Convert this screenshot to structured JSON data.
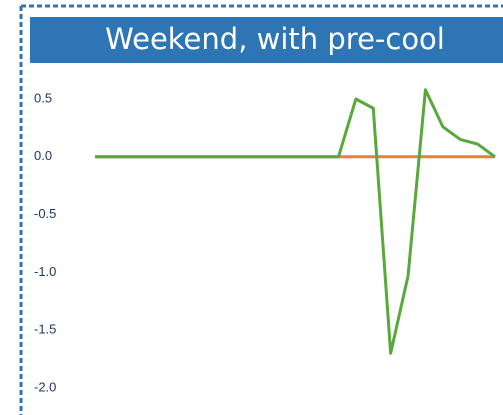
{
  "chart_data": {
    "type": "line",
    "title": "Weekend, with pre-cool",
    "categories": [
      null,
      null,
      null,
      null,
      null,
      null,
      null,
      null,
      null,
      null,
      null,
      null,
      null,
      null,
      null,
      null,
      null,
      null,
      null,
      null,
      null,
      null,
      null,
      null
    ],
    "series": [
      {
        "color": "#ed7d31",
        "values": [
          0,
          0,
          0,
          0,
          0,
          0,
          0,
          0,
          0,
          0,
          0,
          0,
          0,
          0,
          0,
          0,
          0,
          0,
          0,
          0,
          0,
          0,
          0,
          0
        ]
      },
      {
        "color": "#59a83b",
        "values": [
          0,
          0,
          0,
          0,
          0,
          0,
          0,
          0,
          0,
          0,
          0,
          0,
          0,
          0,
          0,
          0.5,
          0.42,
          -1.7,
          -1.03,
          0.58,
          0.26,
          0.15,
          0.11,
          0.0
        ]
      }
    ],
    "ylim": [
      -2.0,
      0.5
    ],
    "yticks": [
      0.5,
      {
        "value": 0,
        "label": "0.0"
      },
      -0.5,
      {
        "value": -1,
        "label": "-1.0"
      },
      -1.5,
      {
        "value": -2,
        "label": "-2.0"
      }
    ],
    "grid": false
  }
}
